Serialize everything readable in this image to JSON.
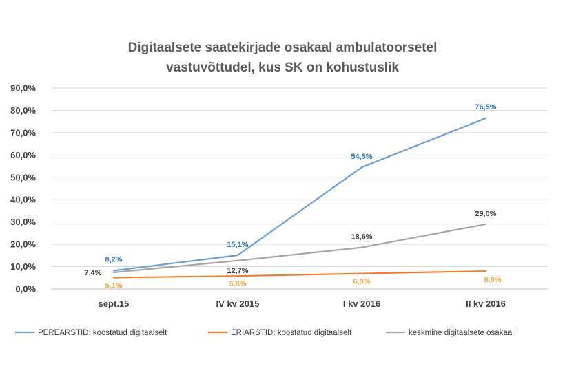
{
  "chart_data": {
    "type": "line",
    "title_lines": [
      "Digitaalsete saatekirjade osakaal ambulatoorsetel",
      "vastuvõttudel, kus SK on kohustuslik"
    ],
    "categories": [
      "sept.15",
      "IV kv 2015",
      "I kv 2016",
      "II kv 2016"
    ],
    "y_ticks": [
      "0,0%",
      "10,0%",
      "20,0%",
      "30,0%",
      "40,0%",
      "50,0%",
      "60,0%",
      "70,0%",
      "80,0%",
      "90,0%"
    ],
    "ylim": [
      0,
      90
    ],
    "grid": true,
    "legend_position": "bottom",
    "series": [
      {
        "name": "PEREARSTID: koostatud digitaalselt",
        "color": "#6a9fd1",
        "label_color": "#2e75b6",
        "values": [
          8.2,
          15.1,
          54.5,
          76.5
        ],
        "labels": [
          "8,2%",
          "15,1%",
          "54,5%",
          "76,5%"
        ]
      },
      {
        "name": "ERIARSTID: koostatud digitaalselt",
        "color": "#ed7d31",
        "label_color": "#f4a742",
        "values": [
          5.1,
          5.8,
          6.9,
          8.0
        ],
        "labels": [
          "5,1%",
          "5,8%",
          "6,9%",
          "8,0%"
        ]
      },
      {
        "name": "keskmine digitaalsete osakaal",
        "color": "#a5a5a5",
        "label_color": "#404040",
        "values": [
          7.4,
          12.7,
          18.6,
          29.0
        ],
        "labels": [
          "7,4%",
          "12,7%",
          "18,6%",
          "29,0%"
        ]
      }
    ]
  }
}
